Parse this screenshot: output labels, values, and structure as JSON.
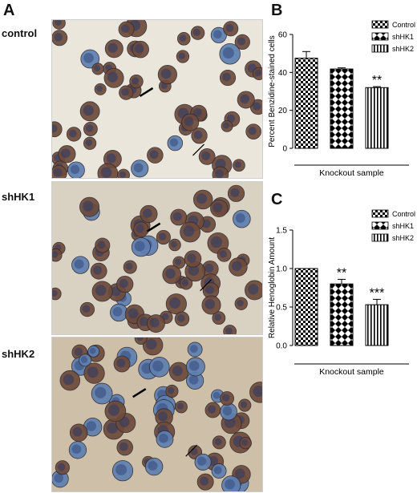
{
  "figure": {
    "panel_a": {
      "letter": "A",
      "rows": [
        {
          "label": "control"
        },
        {
          "label": "shHK1"
        },
        {
          "label": "shHK2"
        }
      ]
    },
    "panel_b": {
      "letter": "B"
    },
    "panel_c": {
      "letter": "C"
    }
  },
  "colors": {
    "background_a": "#eae6dc",
    "background_b": "#d9d1c2",
    "background_c": "#cdbfa8",
    "brown_cell": "#6e4a3a",
    "blue_cell": "#5f7fb0",
    "bar_stroke": "#000000"
  },
  "chart_data": [
    {
      "type": "bar",
      "panel": "B",
      "categories": [
        "Control",
        "shHK1",
        "shHK2"
      ],
      "values": [
        47.5,
        41.8,
        32.0
      ],
      "errors": [
        3.5,
        0.6,
        0.5
      ],
      "significance": [
        "",
        "",
        "**"
      ],
      "patterns": [
        "checker",
        "diamond",
        "vstripe"
      ],
      "ylabel": "Percent Benzidine-stained cells",
      "xlabel": "Knockout sample",
      "ylim": [
        0,
        60
      ],
      "yticks": [
        0,
        20,
        40,
        60
      ],
      "ytick_labels": [
        "0",
        "20",
        "40",
        "60"
      ],
      "legend": [
        "Control",
        "shHK1",
        "shHK2"
      ],
      "legend_position": "top-right"
    },
    {
      "type": "bar",
      "panel": "C",
      "categories": [
        "Control",
        "shHK1",
        "shHK2"
      ],
      "values": [
        1.0,
        0.8,
        0.53
      ],
      "errors": [
        0.0,
        0.06,
        0.07
      ],
      "significance": [
        "",
        "**",
        "***"
      ],
      "patterns": [
        "checker",
        "diamond",
        "vstripe"
      ],
      "ylabel": "Relative Henoglobin Amount",
      "xlabel": "Knockout sample",
      "ylim": [
        0,
        1.5
      ],
      "yticks": [
        0,
        0.5,
        1.0,
        1.5
      ],
      "ytick_labels": [
        "0.0",
        "0.5",
        "1.0",
        "1.5"
      ],
      "legend": [
        "Control",
        "shHK1",
        "shHK2"
      ],
      "legend_position": "top-right"
    }
  ]
}
